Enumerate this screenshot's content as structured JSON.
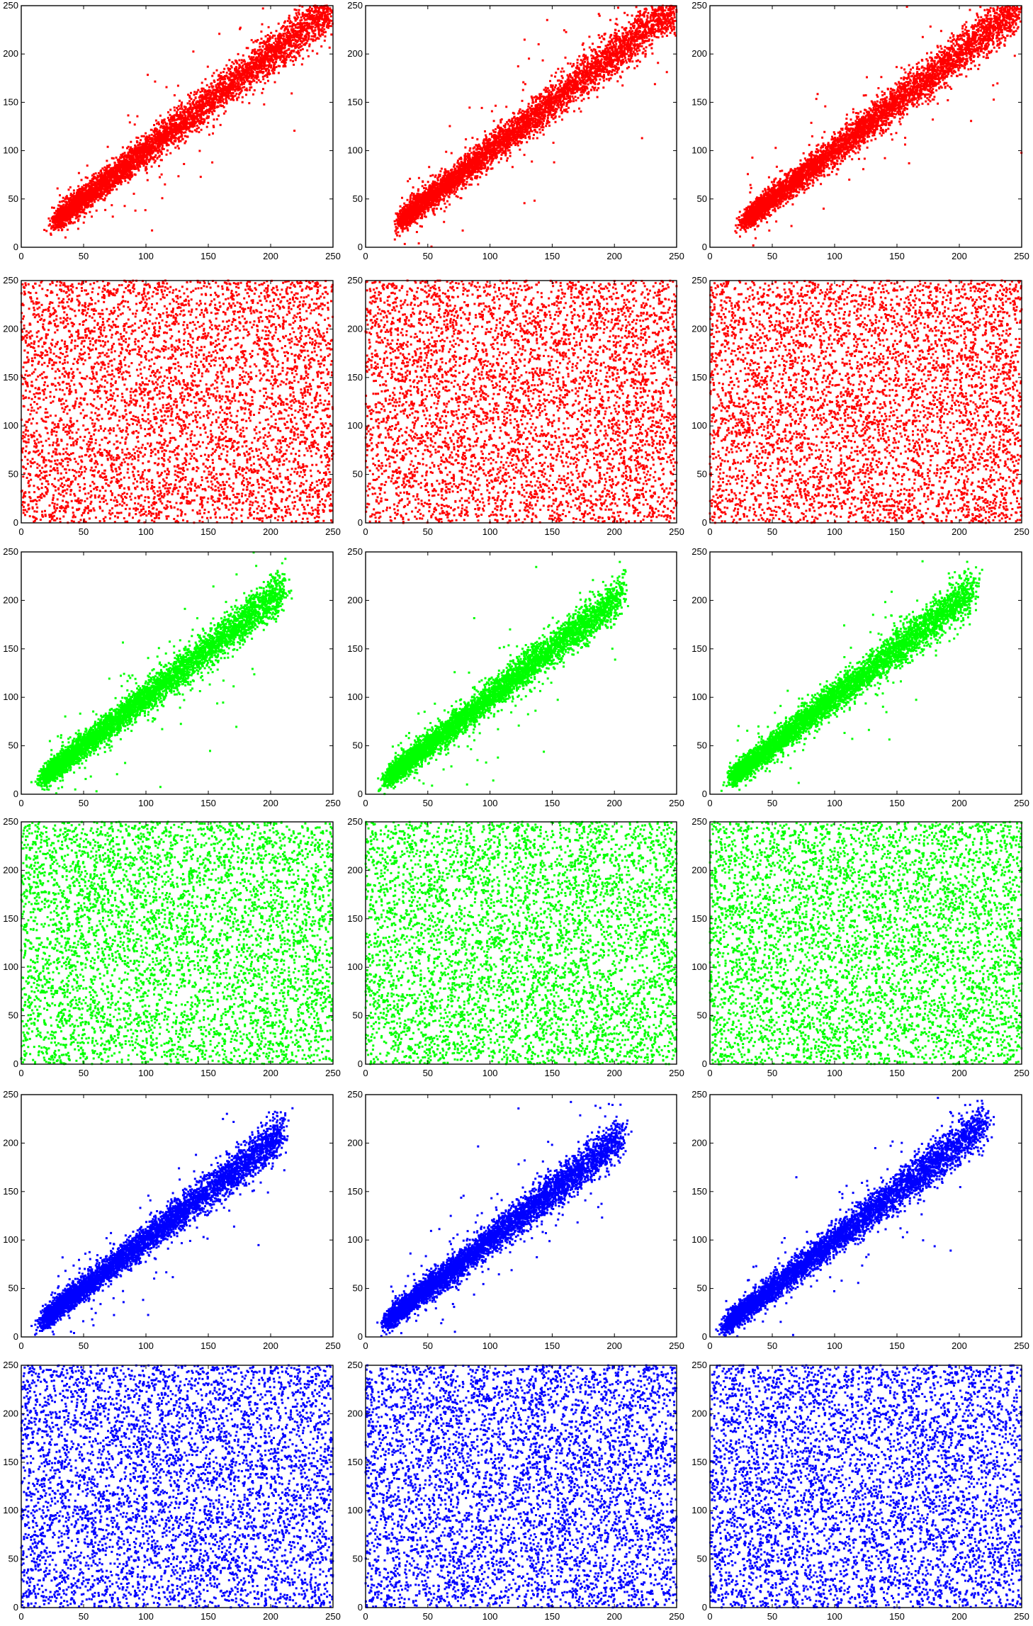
{
  "colors": {
    "red": "#ff0000",
    "green": "#00ff00",
    "blue": "#0000ff"
  },
  "chart_data": [
    {
      "type": "scatter",
      "row": 1,
      "col": 1,
      "color": "#ff0000",
      "pattern": "correlated",
      "xlim": [
        0,
        250
      ],
      "ylim": [
        0,
        250
      ],
      "x_ticks": [
        0,
        50,
        100,
        150,
        200,
        250
      ],
      "y_ticks": [
        0,
        50,
        100,
        150,
        200,
        250
      ],
      "x_tick_labels": [
        "0",
        "50",
        "100",
        "150",
        "200",
        "250"
      ],
      "y_tick_labels": [
        "0",
        "50",
        "100",
        "150",
        "200",
        "250"
      ],
      "x_range": [
        30,
        250
      ],
      "trend": {
        "slope": 1.0,
        "intercept": 0
      },
      "approx_points": 5000,
      "grid": false,
      "title": "",
      "xlabel": "",
      "ylabel": ""
    },
    {
      "type": "scatter",
      "row": 1,
      "col": 2,
      "color": "#ff0000",
      "pattern": "correlated",
      "xlim": [
        0,
        250
      ],
      "ylim": [
        0,
        250
      ],
      "x_ticks": [
        0,
        50,
        100,
        150,
        200,
        250
      ],
      "y_ticks": [
        0,
        50,
        100,
        150,
        200,
        250
      ],
      "x_tick_labels": [
        "0",
        "50",
        "100",
        "150",
        "200",
        "250"
      ],
      "y_tick_labels": [
        "0",
        "50",
        "100",
        "150",
        "200",
        "250"
      ],
      "x_range": [
        30,
        250
      ],
      "trend": {
        "slope": 1.0,
        "intercept": 0
      },
      "approx_points": 5000,
      "grid": false,
      "title": "",
      "xlabel": "",
      "ylabel": ""
    },
    {
      "type": "scatter",
      "row": 1,
      "col": 3,
      "color": "#ff0000",
      "pattern": "correlated",
      "xlim": [
        0,
        250
      ],
      "ylim": [
        0,
        250
      ],
      "x_ticks": [
        0,
        50,
        100,
        150,
        200,
        250
      ],
      "y_ticks": [
        0,
        50,
        100,
        150,
        200,
        250
      ],
      "x_tick_labels": [
        "0",
        "50",
        "100",
        "150",
        "200",
        "250"
      ],
      "y_tick_labels": [
        "0",
        "50",
        "100",
        "150",
        "200",
        "250"
      ],
      "x_range": [
        30,
        250
      ],
      "trend": {
        "slope": 1.0,
        "intercept": 0
      },
      "approx_points": 5000,
      "grid": false,
      "title": "",
      "xlabel": "",
      "ylabel": ""
    },
    {
      "type": "scatter",
      "row": 2,
      "col": 1,
      "color": "#ff0000",
      "pattern": "uniform",
      "xlim": [
        0,
        250
      ],
      "ylim": [
        0,
        250
      ],
      "x_ticks": [
        0,
        50,
        100,
        150,
        200,
        250
      ],
      "y_ticks": [
        0,
        50,
        100,
        150,
        200,
        250
      ],
      "x_tick_labels": [
        "0",
        "50",
        "100",
        "150",
        "200",
        "250"
      ],
      "y_tick_labels": [
        "0",
        "50",
        "100",
        "150",
        "200",
        "250"
      ],
      "x_range": [
        0,
        250
      ],
      "y_range": [
        0,
        250
      ],
      "approx_points": 5000,
      "grid": false,
      "title": "",
      "xlabel": "",
      "ylabel": ""
    },
    {
      "type": "scatter",
      "row": 2,
      "col": 2,
      "color": "#ff0000",
      "pattern": "uniform",
      "xlim": [
        0,
        250
      ],
      "ylim": [
        0,
        250
      ],
      "x_ticks": [
        0,
        50,
        100,
        150,
        200,
        250
      ],
      "y_ticks": [
        0,
        50,
        100,
        150,
        200,
        250
      ],
      "x_tick_labels": [
        "0",
        "50",
        "100",
        "150",
        "200",
        "250"
      ],
      "y_tick_labels": [
        "0",
        "50",
        "100",
        "150",
        "200",
        "250"
      ],
      "x_range": [
        0,
        250
      ],
      "y_range": [
        0,
        250
      ],
      "approx_points": 5000,
      "grid": false,
      "title": "",
      "xlabel": "",
      "ylabel": ""
    },
    {
      "type": "scatter",
      "row": 2,
      "col": 3,
      "color": "#ff0000",
      "pattern": "uniform",
      "xlim": [
        0,
        250
      ],
      "ylim": [
        0,
        250
      ],
      "x_ticks": [
        0,
        50,
        100,
        150,
        200,
        250
      ],
      "y_ticks": [
        0,
        50,
        100,
        150,
        200,
        250
      ],
      "x_tick_labels": [
        "0",
        "50",
        "100",
        "150",
        "200",
        "250"
      ],
      "y_tick_labels": [
        "0",
        "50",
        "100",
        "150",
        "200",
        "250"
      ],
      "x_range": [
        0,
        250
      ],
      "y_range": [
        0,
        250
      ],
      "approx_points": 5000,
      "grid": false,
      "title": "",
      "xlabel": "",
      "ylabel": ""
    },
    {
      "type": "scatter",
      "row": 3,
      "col": 1,
      "color": "#00ff00",
      "pattern": "correlated",
      "xlim": [
        0,
        250
      ],
      "ylim": [
        0,
        250
      ],
      "x_ticks": [
        0,
        50,
        100,
        150,
        200,
        250
      ],
      "y_ticks": [
        0,
        50,
        100,
        150,
        200,
        250
      ],
      "x_tick_labels": [
        "0",
        "50",
        "100",
        "150",
        "200",
        "250"
      ],
      "y_tick_labels": [
        "0",
        "50",
        "100",
        "150",
        "200",
        "250"
      ],
      "x_range": [
        20,
        210
      ],
      "trend": {
        "slope": 1.0,
        "intercept": 0
      },
      "approx_points": 5000,
      "grid": false,
      "title": "",
      "xlabel": "",
      "ylabel": ""
    },
    {
      "type": "scatter",
      "row": 3,
      "col": 2,
      "color": "#00ff00",
      "pattern": "correlated",
      "xlim": [
        0,
        250
      ],
      "ylim": [
        0,
        250
      ],
      "x_ticks": [
        0,
        50,
        100,
        150,
        200,
        250
      ],
      "y_ticks": [
        0,
        50,
        100,
        150,
        200,
        250
      ],
      "x_tick_labels": [
        "0",
        "50",
        "100",
        "150",
        "200",
        "250"
      ],
      "y_tick_labels": [
        "0",
        "50",
        "100",
        "150",
        "200",
        "250"
      ],
      "x_range": [
        20,
        205
      ],
      "trend": {
        "slope": 1.0,
        "intercept": 0
      },
      "approx_points": 5000,
      "grid": false,
      "title": "",
      "xlabel": "",
      "ylabel": ""
    },
    {
      "type": "scatter",
      "row": 3,
      "col": 3,
      "color": "#00ff00",
      "pattern": "correlated",
      "xlim": [
        0,
        250
      ],
      "ylim": [
        0,
        250
      ],
      "x_ticks": [
        0,
        50,
        100,
        150,
        200,
        250
      ],
      "y_ticks": [
        0,
        50,
        100,
        150,
        200,
        250
      ],
      "x_tick_labels": [
        "0",
        "50",
        "100",
        "150",
        "200",
        "250"
      ],
      "y_tick_labels": [
        "0",
        "50",
        "100",
        "150",
        "200",
        "250"
      ],
      "x_range": [
        20,
        210
      ],
      "trend": {
        "slope": 1.0,
        "intercept": 0
      },
      "approx_points": 5000,
      "grid": false,
      "title": "",
      "xlabel": "",
      "ylabel": ""
    },
    {
      "type": "scatter",
      "row": 4,
      "col": 1,
      "color": "#00ff00",
      "pattern": "uniform",
      "xlim": [
        0,
        250
      ],
      "ylim": [
        0,
        250
      ],
      "x_ticks": [
        0,
        50,
        100,
        150,
        200,
        250
      ],
      "y_ticks": [
        0,
        50,
        100,
        150,
        200,
        250
      ],
      "x_tick_labels": [
        "0",
        "50",
        "100",
        "150",
        "200",
        "250"
      ],
      "y_tick_labels": [
        "0",
        "50",
        "100",
        "150",
        "200",
        "250"
      ],
      "x_range": [
        0,
        250
      ],
      "y_range": [
        0,
        250
      ],
      "approx_points": 5000,
      "grid": false,
      "title": "",
      "xlabel": "",
      "ylabel": ""
    },
    {
      "type": "scatter",
      "row": 4,
      "col": 2,
      "color": "#00ff00",
      "pattern": "uniform",
      "xlim": [
        0,
        250
      ],
      "ylim": [
        0,
        250
      ],
      "x_ticks": [
        0,
        50,
        100,
        150,
        200,
        250
      ],
      "y_ticks": [
        0,
        50,
        100,
        150,
        200,
        250
      ],
      "x_tick_labels": [
        "0",
        "50",
        "100",
        "150",
        "200",
        "250"
      ],
      "y_tick_labels": [
        "0",
        "50",
        "100",
        "150",
        "200",
        "250"
      ],
      "x_range": [
        0,
        250
      ],
      "y_range": [
        0,
        250
      ],
      "approx_points": 5000,
      "grid": false,
      "title": "",
      "xlabel": "",
      "ylabel": ""
    },
    {
      "type": "scatter",
      "row": 4,
      "col": 3,
      "color": "#00ff00",
      "pattern": "uniform",
      "xlim": [
        0,
        250
      ],
      "ylim": [
        0,
        250
      ],
      "x_ticks": [
        0,
        50,
        100,
        150,
        200,
        250
      ],
      "y_ticks": [
        0,
        50,
        100,
        150,
        200,
        250
      ],
      "x_tick_labels": [
        "0",
        "50",
        "100",
        "150",
        "200",
        "250"
      ],
      "y_tick_labels": [
        "0",
        "50",
        "100",
        "150",
        "200",
        "250"
      ],
      "x_range": [
        0,
        250
      ],
      "y_range": [
        0,
        250
      ],
      "approx_points": 5000,
      "grid": false,
      "title": "",
      "xlabel": "",
      "ylabel": ""
    },
    {
      "type": "scatter",
      "row": 5,
      "col": 1,
      "color": "#0000ff",
      "pattern": "correlated",
      "xlim": [
        0,
        250
      ],
      "ylim": [
        0,
        250
      ],
      "x_ticks": [
        0,
        50,
        100,
        150,
        200,
        250
      ],
      "y_ticks": [
        0,
        50,
        100,
        150,
        200,
        250
      ],
      "x_tick_labels": [
        "0",
        "50",
        "100",
        "150",
        "200",
        "250"
      ],
      "y_tick_labels": [
        "0",
        "50",
        "100",
        "150",
        "200",
        "250"
      ],
      "x_range": [
        20,
        210
      ],
      "trend": {
        "slope": 1.0,
        "intercept": 0
      },
      "approx_points": 5000,
      "grid": false,
      "title": "",
      "xlabel": "",
      "ylabel": ""
    },
    {
      "type": "scatter",
      "row": 5,
      "col": 2,
      "color": "#0000ff",
      "pattern": "correlated",
      "xlim": [
        0,
        250
      ],
      "ylim": [
        0,
        250
      ],
      "x_ticks": [
        0,
        50,
        100,
        150,
        200,
        250
      ],
      "y_ticks": [
        0,
        50,
        100,
        150,
        200,
        250
      ],
      "x_tick_labels": [
        "0",
        "50",
        "100",
        "150",
        "200",
        "250"
      ],
      "y_tick_labels": [
        "0",
        "50",
        "100",
        "150",
        "200",
        "250"
      ],
      "x_range": [
        20,
        205
      ],
      "trend": {
        "slope": 1.0,
        "intercept": 0
      },
      "approx_points": 5000,
      "grid": false,
      "title": "",
      "xlabel": "",
      "ylabel": ""
    },
    {
      "type": "scatter",
      "row": 5,
      "col": 3,
      "color": "#0000ff",
      "pattern": "correlated",
      "xlim": [
        0,
        250
      ],
      "ylim": [
        0,
        250
      ],
      "x_ticks": [
        0,
        50,
        100,
        150,
        200,
        250
      ],
      "y_ticks": [
        0,
        50,
        100,
        150,
        200,
        250
      ],
      "x_tick_labels": [
        "0",
        "50",
        "100",
        "150",
        "200",
        "250"
      ],
      "y_tick_labels": [
        "0",
        "50",
        "100",
        "150",
        "200",
        "250"
      ],
      "x_range": [
        15,
        220
      ],
      "trend": {
        "slope": 1.0,
        "intercept": 0
      },
      "approx_points": 5000,
      "grid": false,
      "title": "",
      "xlabel": "",
      "ylabel": ""
    },
    {
      "type": "scatter",
      "row": 6,
      "col": 1,
      "color": "#0000ff",
      "pattern": "uniform",
      "xlim": [
        0,
        250
      ],
      "ylim": [
        0,
        250
      ],
      "x_ticks": [
        0,
        50,
        100,
        150,
        200,
        250
      ],
      "y_ticks": [
        0,
        50,
        100,
        150,
        200,
        250
      ],
      "x_tick_labels": [
        "0",
        "50",
        "100",
        "150",
        "200",
        "250"
      ],
      "y_tick_labels": [
        "0",
        "50",
        "100",
        "150",
        "200",
        "250"
      ],
      "x_range": [
        0,
        250
      ],
      "y_range": [
        0,
        250
      ],
      "approx_points": 5000,
      "grid": false,
      "title": "",
      "xlabel": "",
      "ylabel": ""
    },
    {
      "type": "scatter",
      "row": 6,
      "col": 2,
      "color": "#0000ff",
      "pattern": "uniform",
      "xlim": [
        0,
        250
      ],
      "ylim": [
        0,
        250
      ],
      "x_ticks": [
        0,
        50,
        100,
        150,
        200,
        250
      ],
      "y_ticks": [
        0,
        50,
        100,
        150,
        200,
        250
      ],
      "x_tick_labels": [
        "0",
        "50",
        "100",
        "150",
        "200",
        "250"
      ],
      "y_tick_labels": [
        "0",
        "50",
        "100",
        "150",
        "200",
        "250"
      ],
      "x_range": [
        0,
        250
      ],
      "y_range": [
        0,
        250
      ],
      "approx_points": 5000,
      "grid": false,
      "title": "",
      "xlabel": "",
      "ylabel": ""
    },
    {
      "type": "scatter",
      "row": 6,
      "col": 3,
      "color": "#0000ff",
      "pattern": "uniform",
      "xlim": [
        0,
        250
      ],
      "ylim": [
        0,
        250
      ],
      "x_ticks": [
        0,
        50,
        100,
        150,
        200,
        250
      ],
      "y_ticks": [
        0,
        50,
        100,
        150,
        200,
        250
      ],
      "x_tick_labels": [
        "0",
        "50",
        "100",
        "150",
        "200",
        "250"
      ],
      "y_tick_labels": [
        "0",
        "50",
        "100",
        "150",
        "200",
        "250"
      ],
      "x_range": [
        0,
        250
      ],
      "y_range": [
        0,
        250
      ],
      "approx_points": 5000,
      "grid": false,
      "title": "",
      "xlabel": "",
      "ylabel": ""
    }
  ]
}
